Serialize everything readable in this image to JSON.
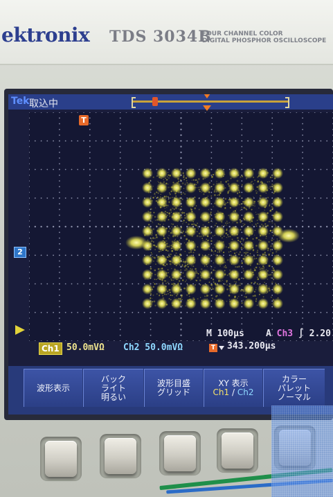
{
  "header": {
    "brand": "ektronix",
    "model": "TDS 3034B",
    "description_line1": "FOUR CHANNEL COLOR",
    "description_line2": "DIGITAL PHOSPHOR OSCILLOSCOPE"
  },
  "status_bar": {
    "logo": "Tek",
    "acquisition_state": "取込中",
    "trigger_position_marker": "T"
  },
  "markers": {
    "trigger_marker": "T",
    "ch2_ground": "2",
    "ch1_ground_icon": "triangle-right-icon"
  },
  "readout": {
    "ch1_label": "Ch1",
    "ch1_scale": "50.0mVΩ",
    "ch2_scale": "Ch2 50.0mVΩ",
    "timebase": "M 100μs",
    "trigger_mode": "A",
    "trigger_source": "Ch3",
    "trigger_slope": "∫",
    "trigger_level": "2.20",
    "delay_marker": "T",
    "delay_value": "343.200μs"
  },
  "menu": {
    "items": [
      {
        "line1": "波形表示"
      },
      {
        "line1": "バック",
        "line2": "ライト",
        "line3": "明るい"
      },
      {
        "line1": "波形目盛",
        "line2": "グリッド"
      },
      {
        "line1": "XY 表示",
        "line2a": "Ch1",
        "line2sep": " / ",
        "line2b": "Ch2"
      },
      {
        "line1": "カラー",
        "line2": "パレット",
        "line3": "ノーマル"
      }
    ]
  },
  "colors": {
    "screen_bg": "#141733",
    "trace": "#f2ee5a",
    "ch1": "#e7d84c",
    "ch2": "#8fd8ff",
    "ch3": "#e075e0",
    "menu_bg": "#283a7a"
  },
  "constellation": {
    "grid_size": 8,
    "pattern": "16x16 QAM-like dot grid"
  }
}
